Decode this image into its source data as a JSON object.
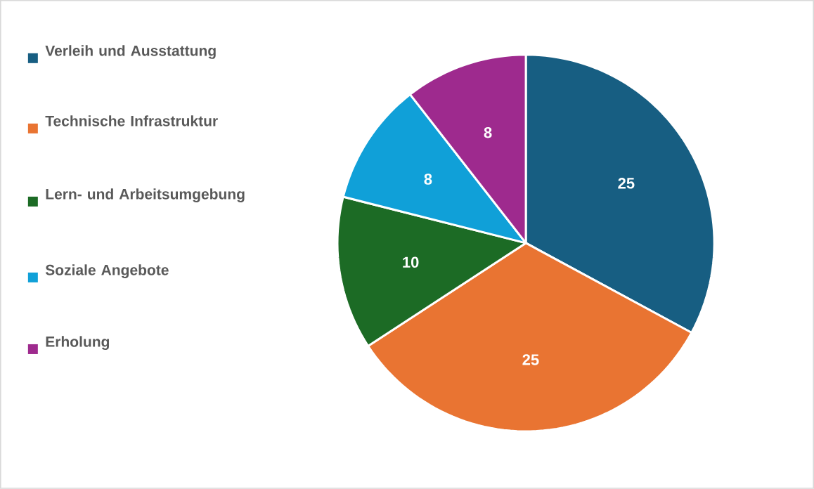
{
  "chart_data": {
    "type": "pie",
    "categories": [
      "Verleih und Ausstattung",
      "Technische Infrastruktur",
      "Lern- und Arbeitsumgebung",
      "Soziale Angebote",
      "Erholung"
    ],
    "values": [
      25,
      25,
      10,
      8,
      8
    ],
    "colors": [
      "#175e82",
      "#e97432",
      "#1c6b25",
      "#10a0d8",
      "#9e2a8e"
    ],
    "data_labels": true,
    "legend": "left"
  }
}
